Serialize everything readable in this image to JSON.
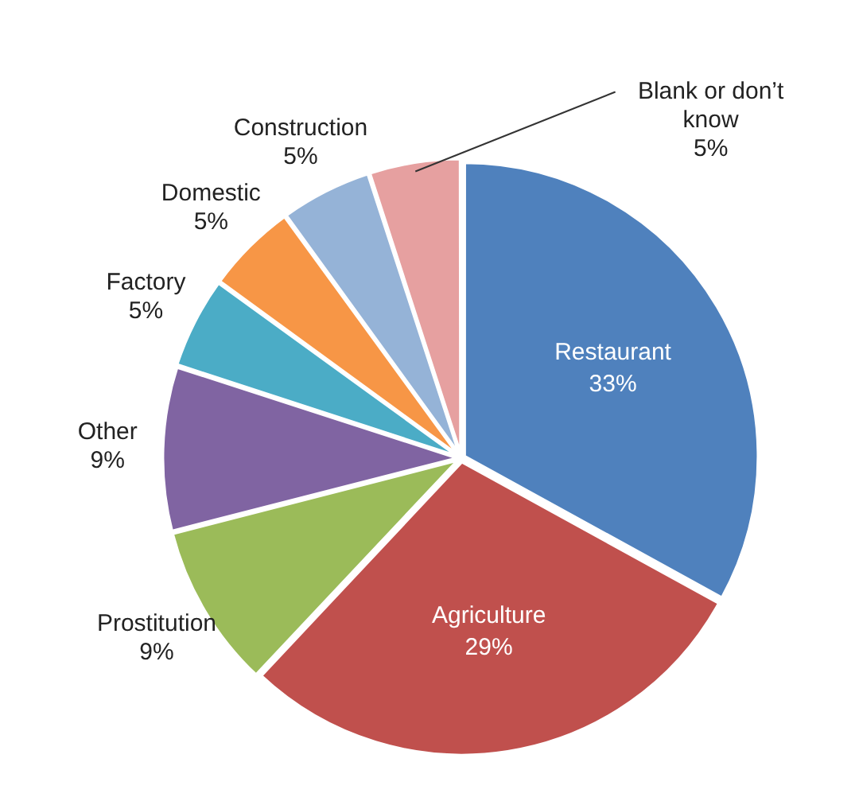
{
  "chart_data": {
    "type": "pie",
    "categories": [
      "Restaurant",
      "Agriculture",
      "Prostitution",
      "Other",
      "Factory",
      "Domestic",
      "Construction",
      "Blank or don’t know"
    ],
    "values": [
      33,
      29,
      9,
      9,
      5,
      5,
      5,
      5
    ],
    "value_labels": [
      "33%",
      "29%",
      "9%",
      "9%",
      "5%",
      "5%",
      "5%",
      "5%"
    ],
    "colors": [
      "#4f81bd",
      "#c0504d",
      "#9bbb59",
      "#8064a2",
      "#4bacc6",
      "#f79646",
      "#95b3d7",
      "#e6a0a0"
    ],
    "legend": false
  }
}
